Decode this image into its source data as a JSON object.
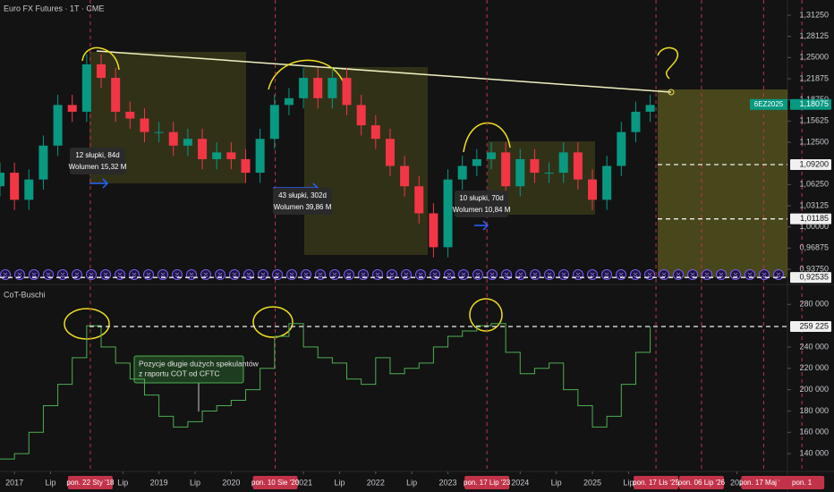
{
  "chart_data": [
    {
      "type": "candlestick",
      "title": "Euro FX Futures · 1T · CME",
      "x": [
        2016.8,
        2017.0,
        2017.2,
        2017.4,
        2017.6,
        2017.8,
        2018.0,
        2018.2,
        2018.4,
        2018.6,
        2018.8,
        2019.0,
        2019.2,
        2019.4,
        2019.6,
        2019.8,
        2020.0,
        2020.2,
        2020.4,
        2020.6,
        2020.8,
        2021.0,
        2021.2,
        2021.4,
        2021.6,
        2021.8,
        2022.0,
        2022.2,
        2022.4,
        2022.6,
        2022.8,
        2023.0,
        2023.2,
        2023.4,
        2023.6,
        2023.8,
        2024.0,
        2024.2,
        2024.4,
        2024.6,
        2024.8,
        2025.0,
        2025.2,
        2025.4,
        2025.6,
        2025.8
      ],
      "open": [
        1.06,
        1.08,
        1.04,
        1.07,
        1.12,
        1.18,
        1.17,
        1.24,
        1.22,
        1.17,
        1.16,
        1.14,
        1.14,
        1.12,
        1.13,
        1.1,
        1.11,
        1.1,
        1.08,
        1.13,
        1.18,
        1.19,
        1.22,
        1.19,
        1.22,
        1.18,
        1.15,
        1.13,
        1.09,
        1.06,
        1.02,
        0.97,
        1.07,
        1.09,
        1.1,
        1.11,
        1.06,
        1.1,
        1.08,
        1.08,
        1.11,
        1.07,
        1.04,
        1.09,
        1.14,
        1.17
      ],
      "high": [
        1.095,
        1.095,
        1.085,
        1.135,
        1.195,
        1.195,
        1.255,
        1.255,
        1.235,
        1.185,
        1.175,
        1.155,
        1.155,
        1.145,
        1.145,
        1.125,
        1.125,
        1.115,
        1.145,
        1.195,
        1.205,
        1.235,
        1.235,
        1.235,
        1.235,
        1.195,
        1.165,
        1.145,
        1.105,
        1.075,
        1.035,
        1.085,
        1.105,
        1.115,
        1.125,
        1.125,
        1.115,
        1.115,
        1.095,
        1.125,
        1.125,
        1.085,
        1.105,
        1.155,
        1.185,
        1.195
      ],
      "low": [
        1.045,
        1.025,
        1.025,
        1.055,
        1.105,
        1.155,
        1.155,
        1.205,
        1.155,
        1.145,
        1.125,
        1.125,
        1.105,
        1.105,
        1.085,
        1.085,
        1.085,
        1.065,
        1.065,
        1.115,
        1.165,
        1.175,
        1.175,
        1.175,
        1.165,
        1.135,
        1.115,
        1.075,
        1.045,
        1.005,
        0.955,
        0.955,
        1.055,
        1.075,
        1.085,
        1.045,
        1.045,
        1.065,
        1.065,
        1.065,
        1.055,
        1.025,
        1.025,
        1.075,
        1.125,
        1.155
      ],
      "close": [
        1.08,
        1.04,
        1.07,
        1.12,
        1.18,
        1.17,
        1.24,
        1.22,
        1.17,
        1.16,
        1.14,
        1.14,
        1.12,
        1.13,
        1.1,
        1.11,
        1.1,
        1.08,
        1.13,
        1.18,
        1.19,
        1.22,
        1.19,
        1.22,
        1.18,
        1.15,
        1.13,
        1.09,
        1.06,
        1.02,
        0.97,
        1.07,
        1.09,
        1.1,
        1.11,
        1.06,
        1.1,
        1.08,
        1.08,
        1.11,
        1.07,
        1.04,
        1.09,
        1.14,
        1.17,
        1.18
      ],
      "up_color": "#089981",
      "down_color": "#f23645",
      "xlim": [
        2016.8,
        2027.7
      ],
      "ylim": [
        0.915,
        1.335
      ],
      "yticks": [
        {
          "value": 1.3125,
          "label": "1,31250"
        },
        {
          "value": 1.28125,
          "label": "1,28125"
        },
        {
          "value": 1.25,
          "label": "1,25000"
        },
        {
          "value": 1.21875,
          "label": "1,21875"
        },
        {
          "value": 1.1875,
          "label": "1,18750"
        },
        {
          "value": 1.15625,
          "label": "1,15625"
        },
        {
          "value": 1.125,
          "label": "1,12500"
        },
        {
          "value": 1.0625,
          "label": "1,06250"
        },
        {
          "value": 1.03125,
          "label": "1,03125"
        },
        {
          "value": 1.0,
          "label": "1,00000"
        },
        {
          "value": 0.96875,
          "label": "0,96875"
        },
        {
          "value": 0.9375,
          "label": "0,93750"
        }
      ],
      "levels": [
        {
          "value": 1.18075,
          "label": "1,18075",
          "tag": "6EZ2025"
        },
        {
          "value": 1.092,
          "label": "1,09200"
        },
        {
          "value": 1.01185,
          "label": "1,01185"
        },
        {
          "value": 0.92535,
          "label": "0,92535"
        }
      ],
      "measures": [
        {
          "bars": "12 słupki, 84d",
          "volume": "Wolumen 15,32 M"
        },
        {
          "bars": "43 słupki, 302d",
          "volume": "Wolumen 39,86 M"
        },
        {
          "bars": "10 słupki, 70d",
          "volume": "Wolumen 10,84 M"
        }
      ]
    },
    {
      "type": "line",
      "title": "CoT-Buschi",
      "x": [
        2016.8,
        2017.0,
        2017.2,
        2017.4,
        2017.6,
        2017.8,
        2018.0,
        2018.2,
        2018.4,
        2018.6,
        2018.8,
        2019.0,
        2019.2,
        2019.4,
        2019.6,
        2019.8,
        2020.0,
        2020.2,
        2020.4,
        2020.6,
        2020.8,
        2021.0,
        2021.2,
        2021.4,
        2021.6,
        2021.8,
        2022.0,
        2022.2,
        2022.4,
        2022.6,
        2022.8,
        2023.0,
        2023.2,
        2023.4,
        2023.6,
        2023.8,
        2024.0,
        2024.2,
        2024.4,
        2024.6,
        2024.8,
        2025.0,
        2025.2,
        2025.4,
        2025.6,
        2025.8
      ],
      "values": [
        135000,
        140000,
        160000,
        185000,
        205000,
        230000,
        260000,
        240000,
        225000,
        210000,
        195000,
        175000,
        165000,
        170000,
        180000,
        185000,
        190000,
        200000,
        220000,
        250000,
        262000,
        240000,
        230000,
        225000,
        210000,
        205000,
        230000,
        215000,
        220000,
        225000,
        240000,
        250000,
        255000,
        260000,
        262000,
        235000,
        215000,
        220000,
        225000,
        200000,
        185000,
        165000,
        175000,
        205000,
        235000,
        259225
      ],
      "color": "#4caf50",
      "xlim": [
        2016.8,
        2027.7
      ],
      "ylim": [
        125000,
        297000
      ],
      "yticks": [
        {
          "value": 280000,
          "label": "280 000"
        },
        {
          "value": 240000,
          "label": "240 000"
        },
        {
          "value": 220000,
          "label": "220 000"
        },
        {
          "value": 200000,
          "label": "200 000"
        },
        {
          "value": 180000,
          "label": "180 000"
        },
        {
          "value": 160000,
          "label": "160 000"
        },
        {
          "value": 140000,
          "label": "140 000"
        }
      ],
      "levels": [
        {
          "value": 259225,
          "label": "259 225"
        }
      ],
      "note": [
        "Pozycje długie dużych spekulantów",
        "z raportu COT od CFTC"
      ],
      "xticks": [
        2017,
        {
          "value": 2017.5,
          "label": "Lip"
        },
        {
          "value": 2018.5,
          "label": "Lip"
        },
        2019,
        {
          "value": 2019.5,
          "label": "Lip"
        },
        2020,
        2021,
        {
          "value": 2021.5,
          "label": "Lip"
        },
        2022,
        {
          "value": 2022.5,
          "label": "Lip"
        },
        2023,
        2024,
        {
          "value": 2024.5,
          "label": "Lip"
        },
        2025,
        {
          "value": 2025.5,
          "label": "Lip"
        },
        {
          "value": 2027,
          "label": "202"
        }
      ],
      "markers": [
        {
          "value": 2018.05,
          "label": "pon. 22 Sty '18"
        },
        {
          "value": 2020.61,
          "label": "pon. 10 Sie '20"
        },
        {
          "value": 2023.54,
          "label": "pon. 17 Lip '23"
        },
        {
          "value": 2025.88,
          "label": "pon. 17 Lis '25"
        },
        {
          "value": 2026.51,
          "label": "pon. 06 Lip '26"
        },
        {
          "value": 2027.37,
          "label": "pon. 17 Maj '27"
        },
        {
          "value": 2027.9,
          "label": "pon. 1"
        }
      ]
    }
  ]
}
